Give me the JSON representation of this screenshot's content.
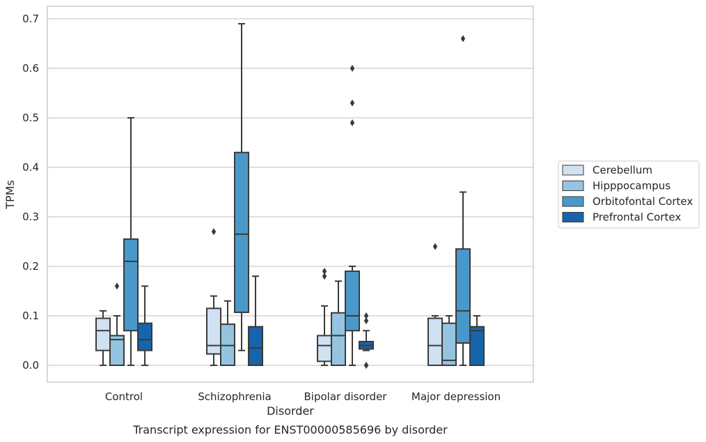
{
  "chart_data": {
    "type": "box",
    "xlabel": "Disorder",
    "ylabel": "TPMs",
    "caption": "Transcript expression for ENST00000585696 by disorder",
    "ylim": [
      -0.035,
      0.725
    ],
    "yticks": [
      0.0,
      0.1,
      0.2,
      0.3,
      0.4,
      0.5,
      0.6,
      0.7
    ],
    "ytick_labels": [
      "0.0",
      "0.1",
      "0.2",
      "0.3",
      "0.4",
      "0.5",
      "0.6",
      "0.7"
    ],
    "grid": "horizontal",
    "legend_position": "right",
    "categories": [
      "Control",
      "Schizophrenia",
      "Bipolar disorder",
      "Major depression"
    ],
    "series": [
      {
        "name": "Cerebellum",
        "color": "#d0e1f2",
        "boxes": [
          {
            "whislo": 0.0,
            "q1": 0.03,
            "med": 0.07,
            "q3": 0.095,
            "whishi": 0.11,
            "fliers": []
          },
          {
            "whislo": 0.0,
            "q1": 0.023,
            "med": 0.04,
            "q3": 0.115,
            "whishi": 0.14,
            "fliers": [
              0.27
            ]
          },
          {
            "whislo": 0.0,
            "q1": 0.008,
            "med": 0.04,
            "q3": 0.06,
            "whishi": 0.12,
            "fliers": [
              0.18,
              0.19
            ]
          },
          {
            "whislo": 0.0,
            "q1": 0.0,
            "med": 0.04,
            "q3": 0.095,
            "whishi": 0.1,
            "fliers": [
              0.24
            ]
          }
        ]
      },
      {
        "name": "Hipppocampus",
        "color": "#94c4df",
        "boxes": [
          {
            "whislo": 0.0,
            "q1": 0.0,
            "med": 0.052,
            "q3": 0.06,
            "whishi": 0.1,
            "fliers": [
              0.16
            ]
          },
          {
            "whislo": 0.0,
            "q1": 0.0,
            "med": 0.04,
            "q3": 0.083,
            "whishi": 0.13,
            "fliers": []
          },
          {
            "whislo": 0.0,
            "q1": 0.0,
            "med": 0.06,
            "q3": 0.106,
            "whishi": 0.17,
            "fliers": []
          },
          {
            "whislo": 0.0,
            "q1": 0.0,
            "med": 0.01,
            "q3": 0.085,
            "whishi": 0.1,
            "fliers": []
          }
        ]
      },
      {
        "name": "Orbitofontal Cortex",
        "color": "#4a98c9",
        "boxes": [
          {
            "whislo": 0.0,
            "q1": 0.07,
            "med": 0.21,
            "q3": 0.255,
            "whishi": 0.5,
            "fliers": []
          },
          {
            "whislo": 0.03,
            "q1": 0.107,
            "med": 0.265,
            "q3": 0.43,
            "whishi": 0.69,
            "fliers": []
          },
          {
            "whislo": 0.0,
            "q1": 0.07,
            "med": 0.1,
            "q3": 0.19,
            "whishi": 0.2,
            "fliers": [
              0.49,
              0.53,
              0.6
            ]
          },
          {
            "whislo": 0.0,
            "q1": 0.045,
            "med": 0.11,
            "q3": 0.235,
            "whishi": 0.35,
            "fliers": [
              0.66
            ]
          }
        ]
      },
      {
        "name": "Prefrontal Cortex",
        "color": "#1764ab",
        "boxes": [
          {
            "whislo": 0.0,
            "q1": 0.03,
            "med": 0.052,
            "q3": 0.085,
            "whishi": 0.16,
            "fliers": []
          },
          {
            "whislo": 0.0,
            "q1": 0.0,
            "med": 0.035,
            "q3": 0.078,
            "whishi": 0.18,
            "fliers": []
          },
          {
            "whislo": 0.03,
            "q1": 0.033,
            "med": 0.04,
            "q3": 0.048,
            "whishi": 0.07,
            "fliers": [
              0.0,
              0.0,
              0.09,
              0.1
            ]
          },
          {
            "whislo": 0.0,
            "q1": 0.0,
            "med": 0.07,
            "q3": 0.078,
            "whishi": 0.1,
            "fliers": []
          }
        ]
      }
    ]
  }
}
